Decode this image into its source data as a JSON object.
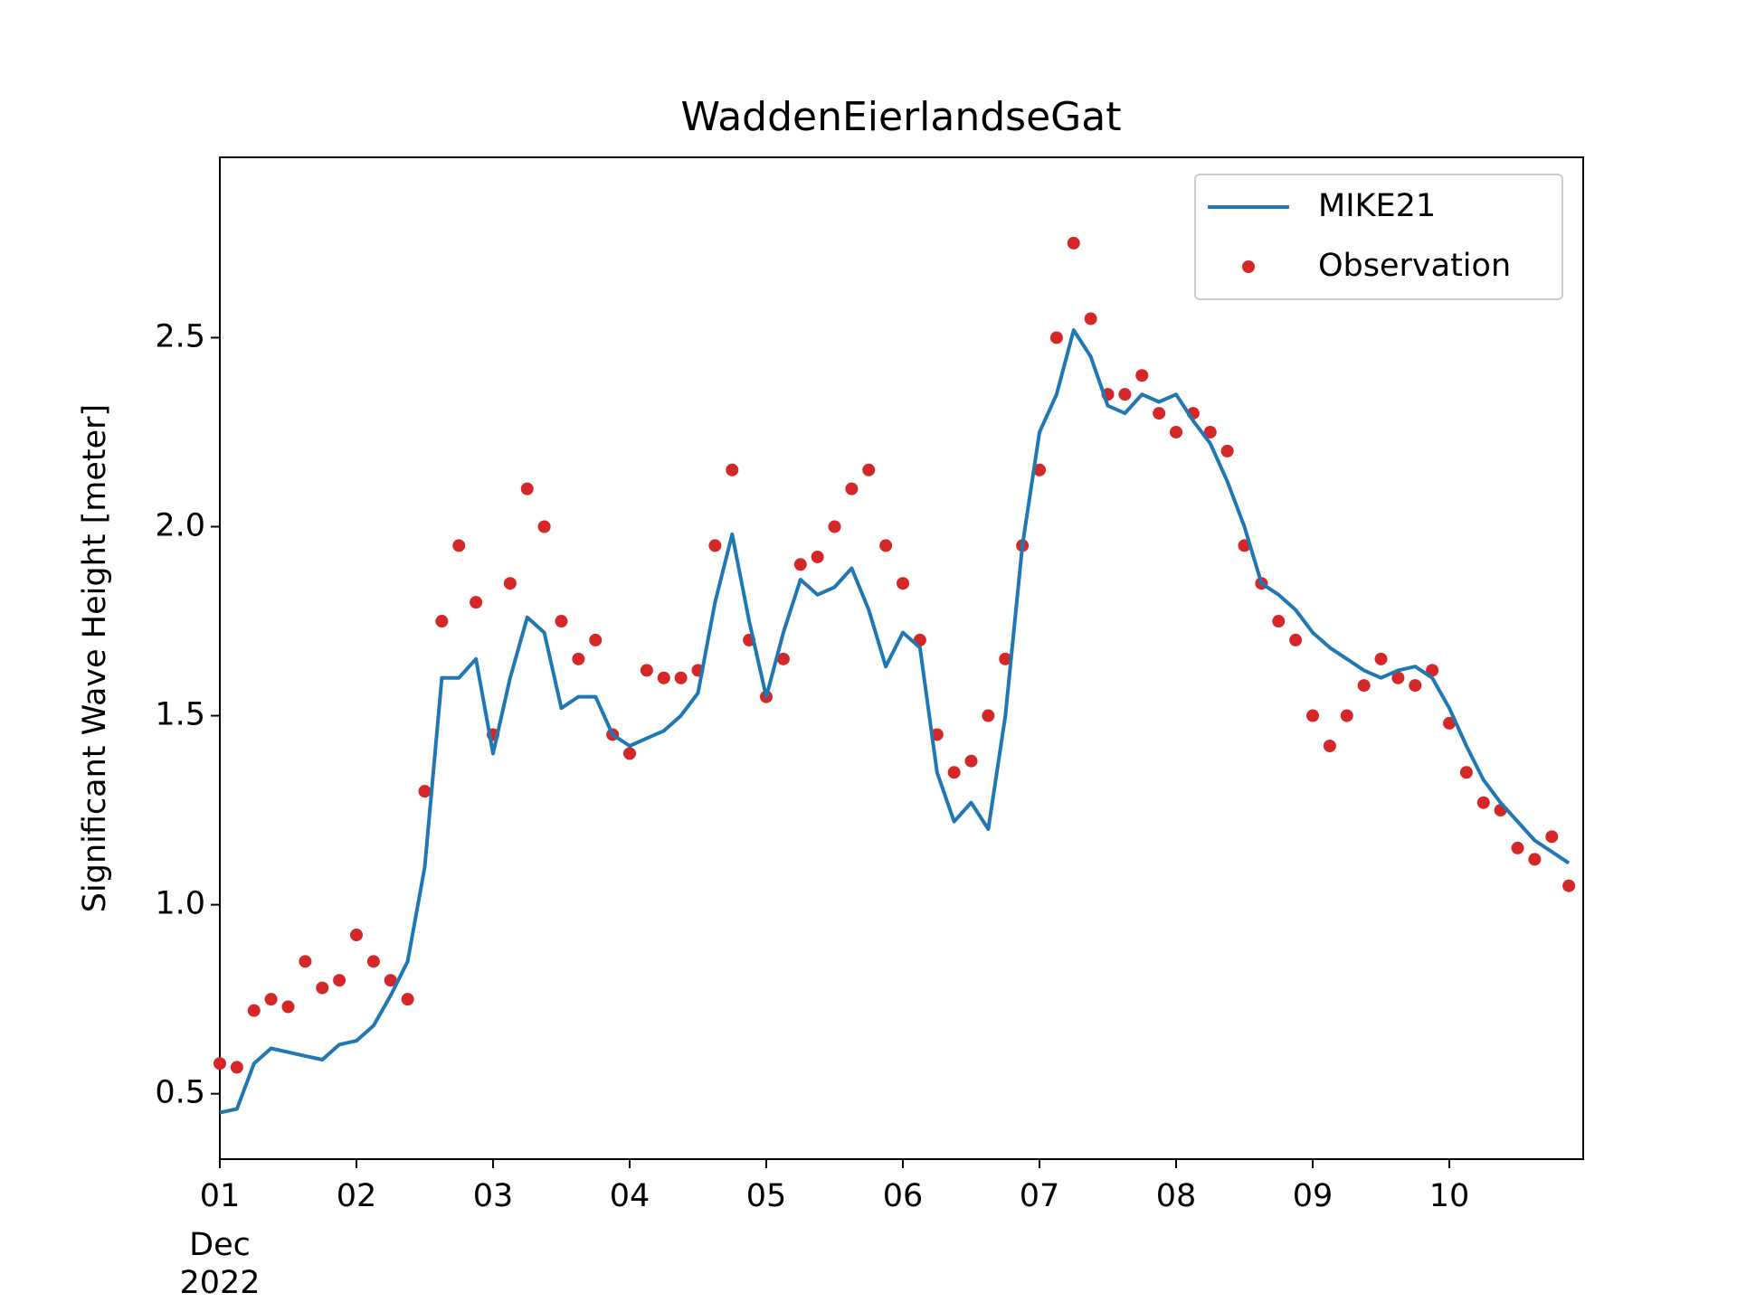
{
  "chart_data": {
    "type": "line_scatter",
    "title": "WaddenEierlandseGat",
    "y_label": "Significant Wave Height [meter]",
    "x": [
      1,
      1.125,
      1.25,
      1.375,
      1.5,
      1.625,
      1.75,
      1.875,
      2,
      2.125,
      2.25,
      2.375,
      2.5,
      2.625,
      2.75,
      2.875,
      3,
      3.125,
      3.25,
      3.375,
      3.5,
      3.625,
      3.75,
      3.875,
      4,
      4.125,
      4.25,
      4.375,
      4.5,
      4.625,
      4.75,
      4.875,
      5,
      5.125,
      5.25,
      5.375,
      5.5,
      5.625,
      5.75,
      5.875,
      6,
      6.125,
      6.25,
      6.375,
      6.5,
      6.625,
      6.75,
      6.875,
      7,
      7.125,
      7.25,
      7.375,
      7.5,
      7.625,
      7.75,
      7.875,
      8,
      8.125,
      8.25,
      8.375,
      8.5,
      8.625,
      8.75,
      8.875,
      9,
      9.125,
      9.25,
      9.375,
      9.5,
      9.625,
      9.75,
      9.875,
      10,
      10.125,
      10.25,
      10.375,
      10.5,
      10.625,
      10.75,
      10.875
    ],
    "series": [
      {
        "name": "MIKE21",
        "kind": "line",
        "color": "#1f77b4",
        "values": [
          0.45,
          0.46,
          0.58,
          0.62,
          0.61,
          0.6,
          0.59,
          0.63,
          0.64,
          0.68,
          0.76,
          0.85,
          1.1,
          1.6,
          1.6,
          1.65,
          1.4,
          1.6,
          1.76,
          1.72,
          1.52,
          1.55,
          1.55,
          1.45,
          1.42,
          1.44,
          1.46,
          1.5,
          1.56,
          1.8,
          1.98,
          1.75,
          1.55,
          1.72,
          1.86,
          1.82,
          1.84,
          1.89,
          1.78,
          1.63,
          1.72,
          1.68,
          1.35,
          1.22,
          1.27,
          1.2,
          1.5,
          1.95,
          2.25,
          2.35,
          2.52,
          2.45,
          2.32,
          2.3,
          2.35,
          2.33,
          2.35,
          2.28,
          2.22,
          2.12,
          2.0,
          1.85,
          1.82,
          1.78,
          1.72,
          1.68,
          1.65,
          1.62,
          1.6,
          1.62,
          1.63,
          1.6,
          1.52,
          1.42,
          1.33,
          1.27,
          1.22,
          1.17,
          1.14,
          1.11
        ]
      },
      {
        "name": "Observation",
        "kind": "scatter",
        "color": "#d62728",
        "values": [
          0.58,
          0.57,
          0.72,
          0.75,
          0.73,
          0.85,
          0.78,
          0.8,
          0.92,
          0.85,
          0.8,
          0.75,
          1.3,
          1.75,
          1.95,
          1.8,
          1.45,
          1.85,
          2.1,
          2.0,
          1.75,
          1.65,
          1.7,
          1.45,
          1.4,
          1.62,
          1.6,
          1.6,
          1.62,
          1.95,
          2.15,
          1.7,
          1.55,
          1.65,
          1.9,
          1.92,
          2.0,
          2.1,
          2.15,
          1.95,
          1.85,
          1.7,
          1.45,
          1.35,
          1.38,
          1.5,
          1.65,
          1.95,
          2.15,
          2.5,
          2.75,
          2.55,
          2.35,
          2.35,
          2.4,
          2.3,
          2.25,
          2.3,
          2.25,
          2.2,
          1.95,
          1.85,
          1.75,
          1.7,
          1.5,
          1.42,
          1.5,
          1.58,
          1.65,
          1.6,
          1.58,
          1.62,
          1.48,
          1.35,
          1.27,
          1.25,
          1.15,
          1.12,
          1.18,
          1.05
        ]
      }
    ],
    "xlim": [
      1,
      10.98
    ],
    "xticks": [
      {
        "value": 1,
        "label": "01"
      },
      {
        "value": 2,
        "label": "02"
      },
      {
        "value": 3,
        "label": "03"
      },
      {
        "value": 4,
        "label": "04"
      },
      {
        "value": 5,
        "label": "05"
      },
      {
        "value": 6,
        "label": "06"
      },
      {
        "value": 7,
        "label": "07"
      },
      {
        "value": 8,
        "label": "08"
      },
      {
        "value": 9,
        "label": "09"
      },
      {
        "value": 10,
        "label": "10"
      }
    ],
    "xtick_sublabels": [
      "Dec",
      "2022"
    ],
    "ylim": [
      0.327,
      2.977
    ],
    "yticks": [
      0.5,
      {
        "value": 1,
        "label": "1.0"
      },
      1.5,
      {
        "value": 2,
        "label": "2.0"
      },
      2.5
    ],
    "grid": false,
    "legend": "upper right"
  }
}
